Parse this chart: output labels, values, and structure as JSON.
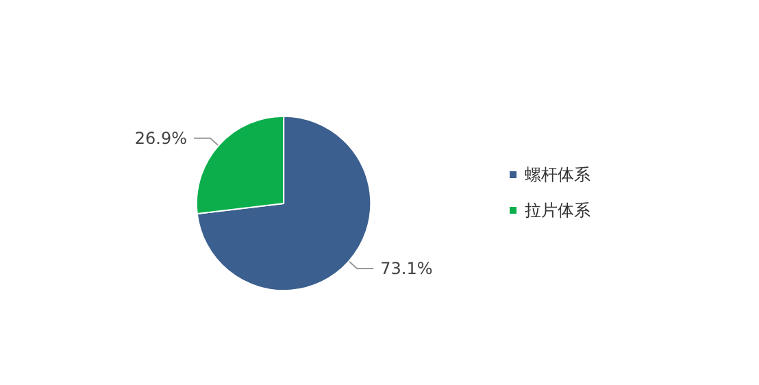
{
  "chart_data": {
    "type": "pie",
    "categories": [
      "螺杆体系",
      "拉片体系"
    ],
    "values": [
      73.1,
      26.9
    ],
    "colors": [
      "#3b5f8e",
      "#0bae4b"
    ],
    "value_labels": [
      "73.1%",
      "26.9%"
    ],
    "legend": "right"
  }
}
